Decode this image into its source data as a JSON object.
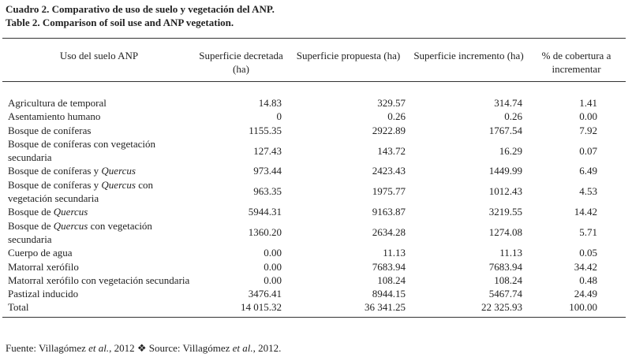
{
  "header": {
    "title_es": "Cuadro 2. Comparativo de uso de suelo y vegetación del ANP.",
    "title_en": "Table 2. Comparison of soil use and ANP vegetation."
  },
  "table": {
    "columns": [
      "Uso del suelo ANP",
      "Superficie decretada (ha)",
      "Superficie propuesta (ha)",
      "Superficie incremento (ha)",
      "% de cobertura a incrementar"
    ],
    "rows": [
      {
        "label": [
          "Agricultura de temporal"
        ],
        "cells": [
          "14.83",
          "329.57",
          "314.74",
          "1.41"
        ]
      },
      {
        "label": [
          "Asentamiento humano"
        ],
        "cells": [
          "0",
          "0.26",
          "0.26",
          "0.00"
        ]
      },
      {
        "label": [
          "Bosque de coníferas"
        ],
        "cells": [
          "1155.35",
          "2922.89",
          "1767.54",
          "7.92"
        ]
      },
      {
        "label": [
          "Bosque de coníferas con vegetación secundaria"
        ],
        "cells": [
          "127.43",
          "143.72",
          "16.29",
          "0.07"
        ]
      },
      {
        "label": [
          "Bosque de coníferas y ",
          "Quercus"
        ],
        "cells": [
          "973.44",
          "2423.43",
          "1449.99",
          "6.49"
        ]
      },
      {
        "label": [
          "Bosque de coníferas y ",
          "Quercus",
          " con vegetación secundaria"
        ],
        "cells": [
          "963.35",
          "1975.77",
          "1012.43",
          "4.53"
        ]
      },
      {
        "label": [
          "Bosque de ",
          "Quercus"
        ],
        "cells": [
          "5944.31",
          "9163.87",
          "3219.55",
          "14.42"
        ]
      },
      {
        "label": [
          "Bosque de ",
          "Quercus",
          " con vegetación secundaria"
        ],
        "cells": [
          "1360.20",
          "2634.28",
          "1274.08",
          "5.71"
        ]
      },
      {
        "label": [
          "Cuerpo de agua"
        ],
        "cells": [
          "0.00",
          "11.13",
          "11.13",
          "0.05"
        ]
      },
      {
        "label": [
          "Matorral xerófilo"
        ],
        "cells": [
          "0.00",
          "7683.94",
          "7683.94",
          "34.42"
        ]
      },
      {
        "label": [
          "Matorral xerófilo con vegetación secundaria"
        ],
        "cells": [
          "0.00",
          "108.24",
          "108.24",
          "0.48"
        ]
      },
      {
        "label": [
          "Pastizal inducido"
        ],
        "cells": [
          "3476.41",
          "8944.15",
          "5467.74",
          "24.49"
        ]
      },
      {
        "label": [
          "Total"
        ],
        "cells": [
          "14 015.32",
          "36 341.25",
          "22 325.93",
          "100.00"
        ]
      }
    ]
  },
  "footer": [
    "Fuente: Villagómez ",
    "et al.",
    ", 2012 ❖ Source: Villagómez ",
    "et al.",
    ", 2012."
  ]
}
